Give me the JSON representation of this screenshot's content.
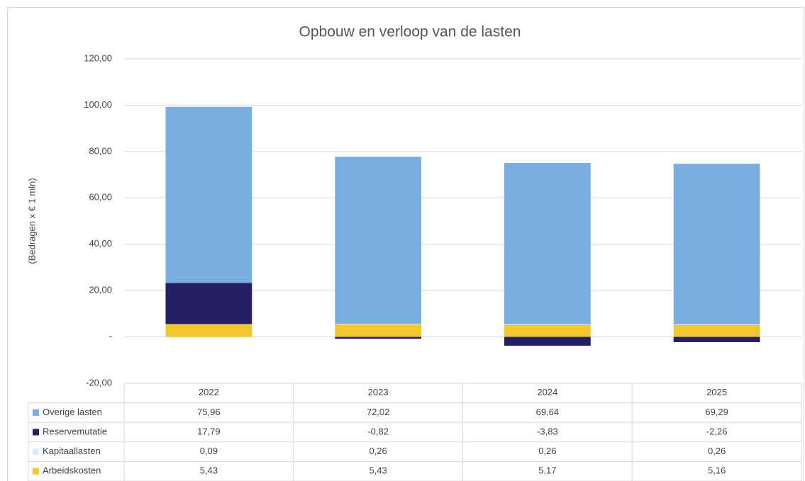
{
  "chart_data": {
    "type": "stacked-bar",
    "title": "Opbouw en verloop van de lasten",
    "y_label": "(Bedragen x € 1 mln)",
    "categories": [
      "2022",
      "2023",
      "2024",
      "2025"
    ],
    "series": [
      {
        "name": "Overige lasten",
        "color": "#7aade0",
        "values": [
          75.96,
          72.02,
          69.64,
          69.29
        ],
        "value_labels": [
          "75,96",
          "72,02",
          "69,64",
          "69,29"
        ]
      },
      {
        "name": "Reservemutatie",
        "color": "#271f66",
        "values": [
          17.79,
          -0.82,
          -3.83,
          -2.26
        ],
        "value_labels": [
          "17,79",
          "-0,82",
          "-3,83",
          "-2,26"
        ]
      },
      {
        "name": "Kapitaallasten",
        "color": "#deebf7",
        "values": [
          0.09,
          0.26,
          0.26,
          0.26
        ],
        "value_labels": [
          "0,09",
          "0,26",
          "0,26",
          "0,26"
        ]
      },
      {
        "name": "Arbeidskosten",
        "color": "#f2c830",
        "values": [
          5.43,
          5.43,
          5.17,
          5.16
        ],
        "value_labels": [
          "5,43",
          "5,43",
          "5,17",
          "5,16"
        ]
      }
    ],
    "ylim": [
      -20,
      120
    ],
    "yticks": [
      {
        "value": -20,
        "label": "-20,00"
      },
      {
        "value": 0,
        "label": "-"
      },
      {
        "value": 20,
        "label": "20,00"
      },
      {
        "value": 40,
        "label": "40,00"
      },
      {
        "value": 60,
        "label": "60,00"
      },
      {
        "value": 80,
        "label": "80,00"
      },
      {
        "value": 100,
        "label": "100,00"
      },
      {
        "value": 120,
        "label": "120,00"
      }
    ],
    "grid": true
  }
}
